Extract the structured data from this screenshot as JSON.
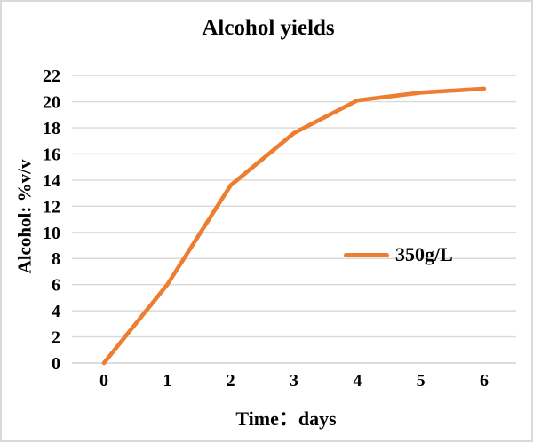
{
  "chart_data": {
    "type": "line",
    "title": "Alcohol yields",
    "xlabel": "Time：days",
    "ylabel": "Alcohol: %v/v",
    "x": [
      0,
      1,
      2,
      3,
      4,
      5,
      6
    ],
    "series": [
      {
        "name": "350g/L",
        "values": [
          0,
          6,
          13.6,
          17.6,
          20.1,
          20.7,
          21
        ]
      }
    ],
    "x_ticks": [
      0,
      1,
      2,
      3,
      4,
      5,
      6
    ],
    "y_ticks": [
      0,
      2,
      4,
      6,
      8,
      10,
      12,
      14,
      16,
      18,
      20,
      22
    ],
    "xlim": [
      0,
      6
    ],
    "ylim": [
      0,
      22
    ],
    "grid": true,
    "legend_position": "middle-right",
    "colors": {
      "line": "#ED7D31",
      "gridline": "#D9D9D9",
      "axis_line": "#D0D0D0",
      "text": "#000000",
      "background": "#FFFFFF",
      "page_border": "#D9D9D9"
    }
  }
}
